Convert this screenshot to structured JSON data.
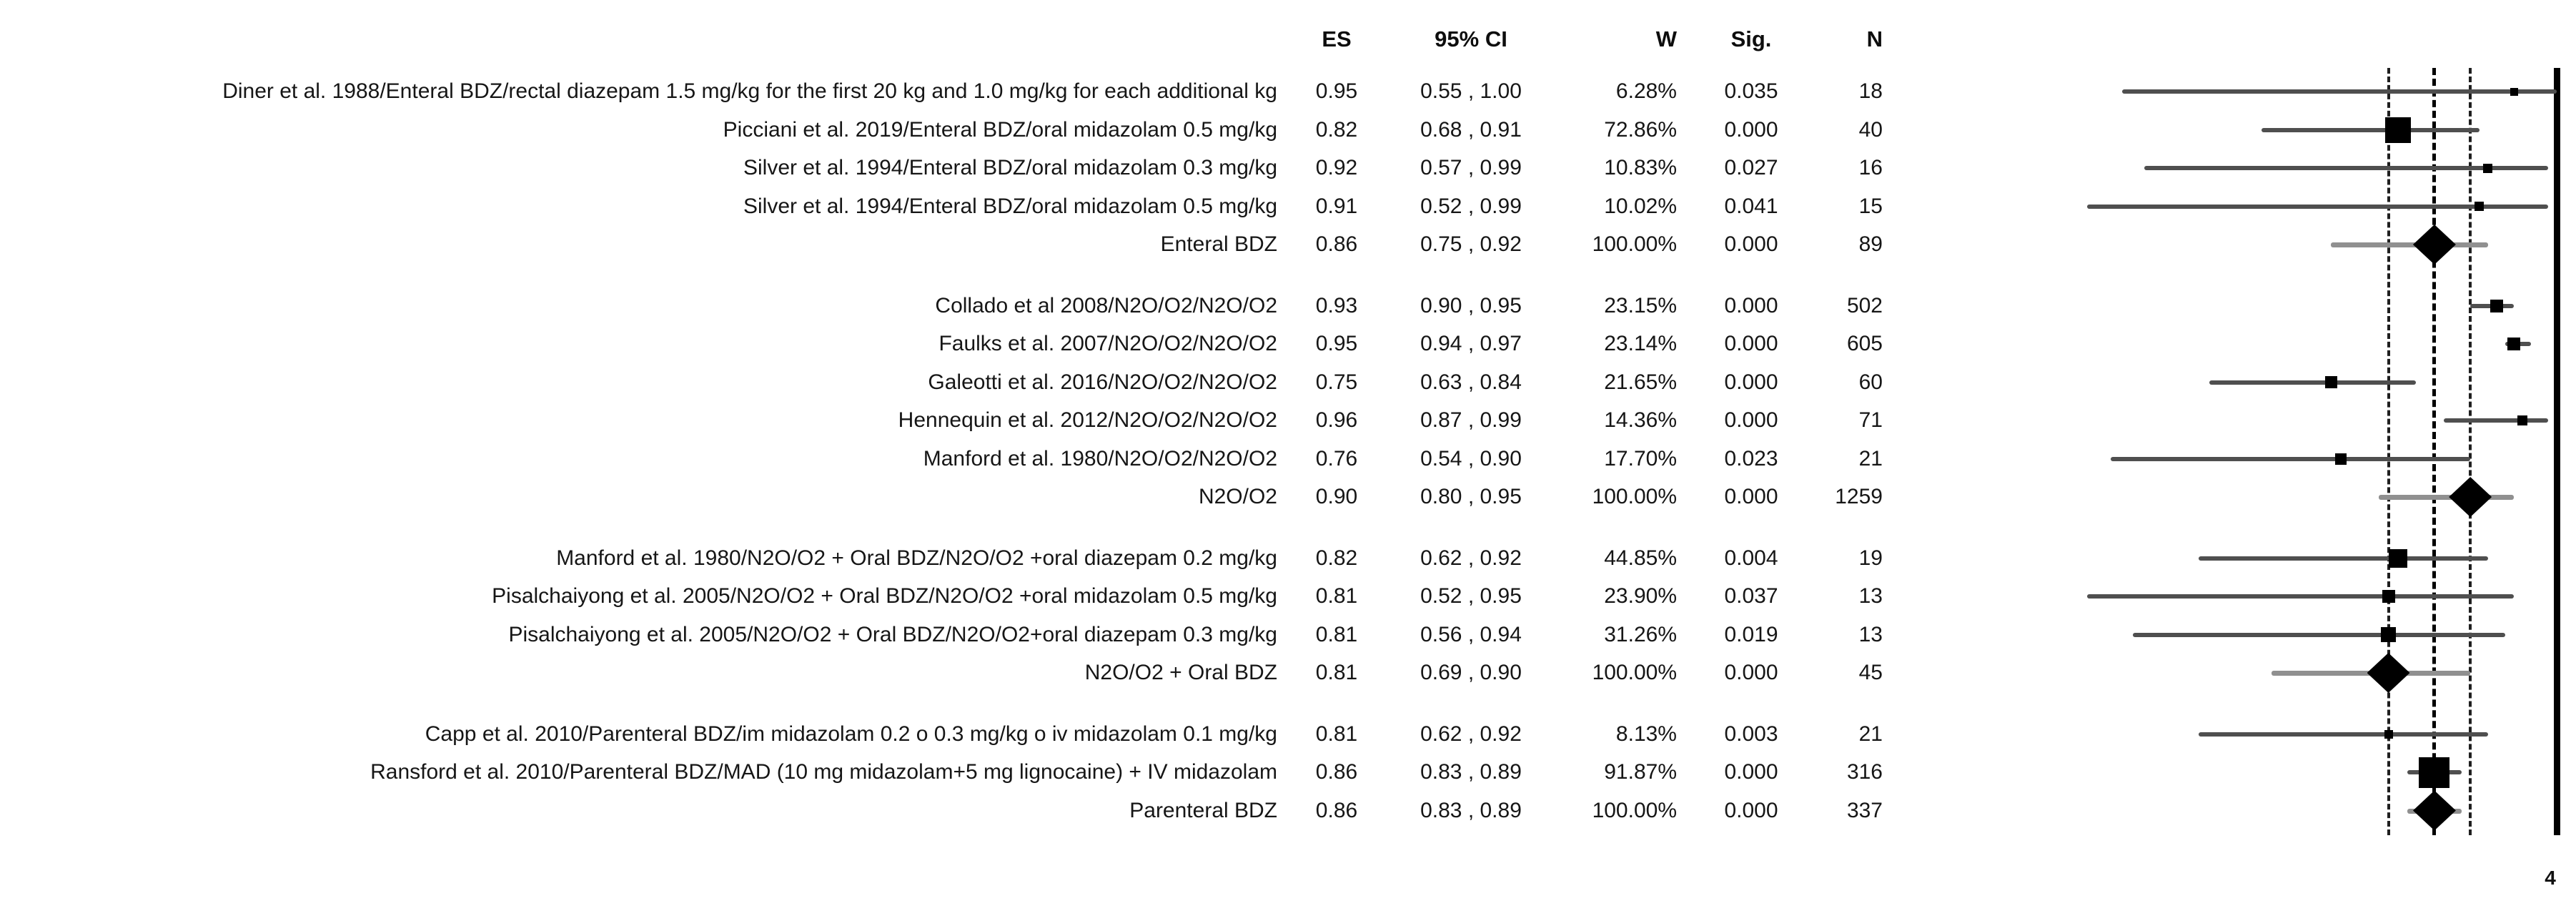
{
  "chart_data": {
    "type": "table",
    "subtype": "forest-plot-meta-analysis",
    "columns": [
      "ES",
      "95% CI",
      "W",
      "Sig.",
      "N"
    ],
    "x_axis": {
      "scale": "sqrt",
      "min": 0.4,
      "max": 1.0,
      "solid_line_es": 1.0,
      "dashed_lines": [
        {
          "es": 0.81,
          "emphasis": false
        },
        {
          "es": 0.86,
          "emphasis": true
        },
        {
          "es": 0.9,
          "emphasis": false
        }
      ],
      "gridlines": false,
      "tick_labels": []
    },
    "legend": null,
    "footnote_mark": "4",
    "groups": [
      {
        "name": "Enteral BDZ",
        "studies": [
          {
            "label": "Diner et al. 1988/Enteral BDZ/rectal diazepam 1.5 mg/kg for the first 20 kg and 1.0 mg/kg for each additional kg",
            "es": 0.95,
            "es_text": "0.95",
            "ci": [
              0.55,
              1.0
            ],
            "ci_text": "0.55 , 1.00",
            "weight": 6.28,
            "weight_text": "6.28%",
            "sig": "0.035",
            "n": "18"
          },
          {
            "label": "Picciani et al. 2019/Enteral BDZ/oral midazolam 0.5 mg/kg",
            "es": 0.82,
            "es_text": "0.82",
            "ci": [
              0.68,
              0.91
            ],
            "ci_text": "0.68 , 0.91",
            "weight": 72.86,
            "weight_text": "72.86%",
            "sig": "0.000",
            "n": "40"
          },
          {
            "label": "Silver et al. 1994/Enteral BDZ/oral midazolam 0.3 mg/kg",
            "es": 0.92,
            "es_text": "0.92",
            "ci": [
              0.57,
              0.99
            ],
            "ci_text": "0.57 , 0.99",
            "weight": 10.83,
            "weight_text": "10.83%",
            "sig": "0.027",
            "n": "16"
          },
          {
            "label": "Silver et al. 1994/Enteral BDZ/oral midazolam 0.5 mg/kg",
            "es": 0.91,
            "es_text": "0.91",
            "ci": [
              0.52,
              0.99
            ],
            "ci_text": "0.52 , 0.99",
            "weight": 10.02,
            "weight_text": "10.02%",
            "sig": "0.041",
            "n": "15"
          }
        ],
        "pooled": {
          "label": "Enteral BDZ",
          "es": 0.86,
          "es_text": "0.86",
          "ci": [
            0.75,
            0.92
          ],
          "ci_text": "0.75 , 0.92",
          "weight": 100.0,
          "weight_text": "100.00%",
          "sig": "0.000",
          "n": "89"
        }
      },
      {
        "name": "N2O/O2",
        "studies": [
          {
            "label": "Collado et al 2008/N2O/O2/N2O/O2",
            "es": 0.93,
            "es_text": "0.93",
            "ci": [
              0.9,
              0.95
            ],
            "ci_text": "0.90 , 0.95",
            "weight": 23.15,
            "weight_text": "23.15%",
            "sig": "0.000",
            "n": "502"
          },
          {
            "label": "Faulks et al. 2007/N2O/O2/N2O/O2",
            "es": 0.95,
            "es_text": "0.95",
            "ci": [
              0.94,
              0.97
            ],
            "ci_text": "0.94 , 0.97",
            "weight": 23.14,
            "weight_text": "23.14%",
            "sig": "0.000",
            "n": "605"
          },
          {
            "label": "Galeotti et al. 2016/N2O/O2/N2O/O2",
            "es": 0.75,
            "es_text": "0.75",
            "ci": [
              0.63,
              0.84
            ],
            "ci_text": "0.63 , 0.84",
            "weight": 21.65,
            "weight_text": "21.65%",
            "sig": "0.000",
            "n": "60"
          },
          {
            "label": "Hennequin et al. 2012/N2O/O2/N2O/O2",
            "es": 0.96,
            "es_text": "0.96",
            "ci": [
              0.87,
              0.99
            ],
            "ci_text": "0.87 , 0.99",
            "weight": 14.36,
            "weight_text": "14.36%",
            "sig": "0.000",
            "n": "71"
          },
          {
            "label": "Manford et al. 1980/N2O/O2/N2O/O2",
            "es": 0.76,
            "es_text": "0.76",
            "ci": [
              0.54,
              0.9
            ],
            "ci_text": "0.54 , 0.90",
            "weight": 17.7,
            "weight_text": "17.70%",
            "sig": "0.023",
            "n": "21"
          }
        ],
        "pooled": {
          "label": "N2O/O2",
          "es": 0.9,
          "es_text": "0.90",
          "ci": [
            0.8,
            0.95
          ],
          "ci_text": "0.80 , 0.95",
          "weight": 100.0,
          "weight_text": "100.00%",
          "sig": "0.000",
          "n": "1259"
        }
      },
      {
        "name": "N2O/O2 + Oral BDZ",
        "studies": [
          {
            "label": "Manford et al. 1980/N2O/O2 + Oral BDZ/N2O/O2 +oral diazepam 0.2 mg/kg",
            "es": 0.82,
            "es_text": "0.82",
            "ci": [
              0.62,
              0.92
            ],
            "ci_text": "0.62 , 0.92",
            "weight": 44.85,
            "weight_text": "44.85%",
            "sig": "0.004",
            "n": "19"
          },
          {
            "label": "Pisalchaiyong et al. 2005/N2O/O2 + Oral BDZ/N2O/O2 +oral midazolam 0.5 mg/kg",
            "es": 0.81,
            "es_text": "0.81",
            "ci": [
              0.52,
              0.95
            ],
            "ci_text": "0.52 , 0.95",
            "weight": 23.9,
            "weight_text": "23.90%",
            "sig": "0.037",
            "n": "13"
          },
          {
            "label": "Pisalchaiyong et al. 2005/N2O/O2 + Oral BDZ/N2O/O2+oral diazepam 0.3 mg/kg",
            "es": 0.81,
            "es_text": "0.81",
            "ci": [
              0.56,
              0.94
            ],
            "ci_text": "0.56 , 0.94",
            "weight": 31.26,
            "weight_text": "31.26%",
            "sig": "0.019",
            "n": "13"
          }
        ],
        "pooled": {
          "label": "N2O/O2 + Oral BDZ",
          "es": 0.81,
          "es_text": "0.81",
          "ci": [
            0.69,
            0.9
          ],
          "ci_text": "0.69 , 0.90",
          "weight": 100.0,
          "weight_text": "100.00%",
          "sig": "0.000",
          "n": "45"
        }
      },
      {
        "name": "Parenteral BDZ",
        "studies": [
          {
            "label": "Capp et al. 2010/Parenteral BDZ/im midazolam 0.2 o 0.3 mg/kg o iv midazolam 0.1 mg/kg",
            "es": 0.81,
            "es_text": "0.81",
            "ci": [
              0.62,
              0.92
            ],
            "ci_text": "0.62 , 0.92",
            "weight": 8.13,
            "weight_text": "8.13%",
            "sig": "0.003",
            "n": "21"
          },
          {
            "label": "Ransford et al. 2010/Parenteral BDZ/MAD (10 mg midazolam+5 mg lignocaine) + IV midazolam",
            "es": 0.86,
            "es_text": "0.86",
            "ci": [
              0.83,
              0.89
            ],
            "ci_text": "0.83 , 0.89",
            "weight": 91.87,
            "weight_text": "91.87%",
            "sig": "0.000",
            "n": "316"
          }
        ],
        "pooled": {
          "label": "Parenteral BDZ",
          "es": 0.86,
          "es_text": "0.86",
          "ci": [
            0.83,
            0.89
          ],
          "ci_text": "0.83 , 0.89",
          "weight": 100.0,
          "weight_text": "100.00%",
          "sig": "0.000",
          "n": "337"
        }
      }
    ]
  }
}
